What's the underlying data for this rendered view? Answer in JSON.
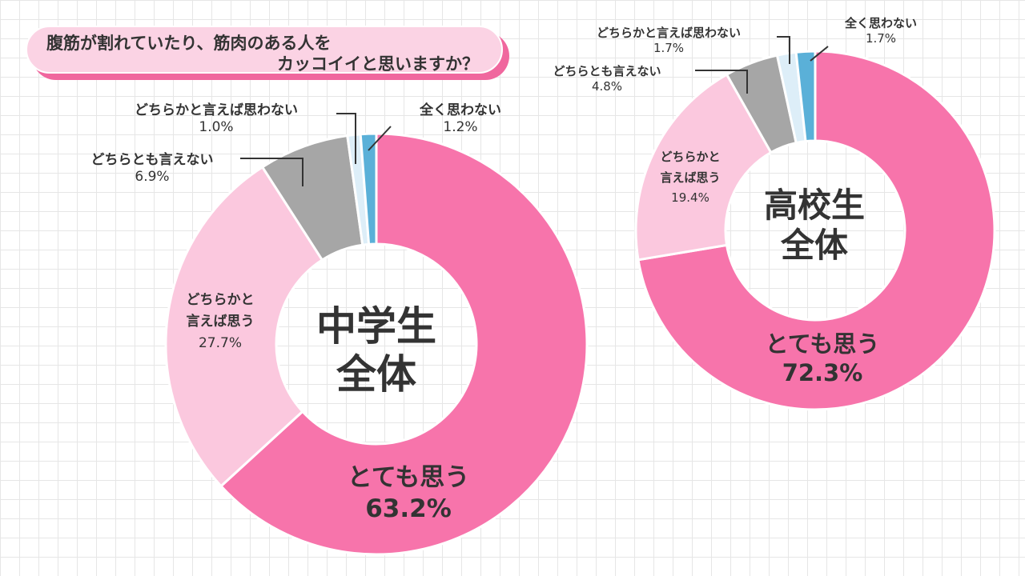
{
  "title": {
    "line1": "腹筋が割れていたり、筋肉のある人を",
    "line2": "カッコイイと思いますか？"
  },
  "chart_data": [
    {
      "type": "pie",
      "title": "中学生 全体",
      "center_label": [
        "中学生",
        "全体"
      ],
      "categories": [
        "とても思う",
        "どちらかと言えば思う",
        "どちらとも言えない",
        "どちらかと言えば思わない",
        "全く思わない"
      ],
      "values": [
        63.2,
        27.7,
        6.9,
        1.0,
        1.2
      ],
      "value_labels": [
        "63.2%",
        "27.7%",
        "6.9%",
        "1.0%",
        "1.2%"
      ],
      "label_lines": [
        [
          "とても思う"
        ],
        [
          "どちらかと",
          "言えば思う"
        ],
        [
          "どちらとも言えない"
        ],
        [
          "どちらかと言えば思わない"
        ],
        [
          "全く思わない"
        ]
      ],
      "colors": [
        "#f774ab",
        "#fbc8de",
        "#a6a6a6",
        "#ddeef8",
        "#5ab0d8"
      ]
    },
    {
      "type": "pie",
      "title": "高校生 全体",
      "center_label": [
        "高校生",
        "全体"
      ],
      "categories": [
        "とても思う",
        "どちらかと言えば思う",
        "どちらとも言えない",
        "どちらかと言えば思わない",
        "全く思わない"
      ],
      "values": [
        72.3,
        19.4,
        4.8,
        1.7,
        1.7
      ],
      "value_labels": [
        "72.3%",
        "19.4%",
        "4.8%",
        "1.7%",
        "1.7%"
      ],
      "label_lines": [
        [
          "とても思う"
        ],
        [
          "どちらかと",
          "言えば思う"
        ],
        [
          "どちらとも言えない"
        ],
        [
          "どちらかと言えば思わない"
        ],
        [
          "全く思わない"
        ]
      ],
      "colors": [
        "#f774ab",
        "#fbc8de",
        "#a6a6a6",
        "#ddeef8",
        "#5ab0d8"
      ]
    }
  ]
}
